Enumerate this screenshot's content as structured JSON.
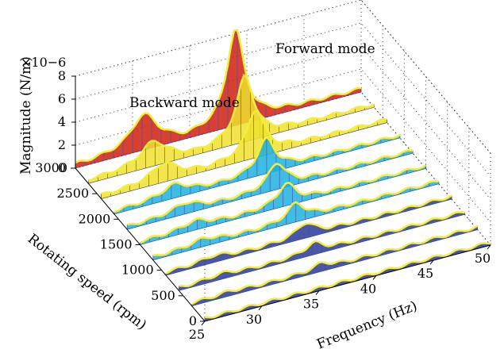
{
  "chart_data": {
    "type": "waterfall",
    "title": "",
    "xlabel": "Frequency (Hz)",
    "ylabel": "Rotating speed (rpm)",
    "zlabel": "Magnitude (N/m)",
    "z_multiplier": "×10−6",
    "x_ticks": [
      "25",
      "30",
      "35",
      "40",
      "45",
      "50"
    ],
    "y_ticks": [
      "0",
      "500",
      "1000",
      "1500",
      "2000",
      "2500",
      "3000"
    ],
    "z_ticks": [
      "0",
      "2",
      "4",
      "6",
      "8"
    ],
    "xlim": [
      25,
      50
    ],
    "ylim": [
      0,
      3000
    ],
    "zlim": [
      0,
      8
    ],
    "annotations": [
      "Backward mode",
      "Forward mode"
    ],
    "grid": true,
    "colormap": "jet",
    "colors": {
      "surface_low": "#2a3a9a",
      "surface_mid": "#1fb0e0",
      "surface_high": "#f0e030",
      "surface_peak": "#d02010",
      "highlight_lines": "#f4ee3a"
    },
    "series": [
      {
        "rpm": 0,
        "peak_hz": 36.0,
        "peak": 0.0
      },
      {
        "rpm": 300,
        "peak_hz": 36.4,
        "peak": 0.5
      },
      {
        "rpm": 600,
        "peak_hz": 36.8,
        "peak": 0.8
      },
      {
        "rpm": 900,
        "peak_hz": 37.2,
        "peak": 1.1
      },
      {
        "rpm": 1200,
        "peak_hz": 37.5,
        "peak": 1.4
      },
      {
        "rpm": 1500,
        "peak_hz": 37.8,
        "peak": 1.7
      },
      {
        "rpm": 1800,
        "peak_hz": 38.1,
        "peak": 2.1
      },
      {
        "rpm": 2100,
        "peak_hz": 38.3,
        "peak": 2.8
      },
      {
        "rpm": 2400,
        "peak_hz": 38.5,
        "peak": 4.0
      },
      {
        "rpm": 2700,
        "peak_hz": 38.7,
        "peak": 5.5
      },
      {
        "rpm": 3000,
        "peak_hz": 39.0,
        "peak": 8.2
      }
    ]
  }
}
